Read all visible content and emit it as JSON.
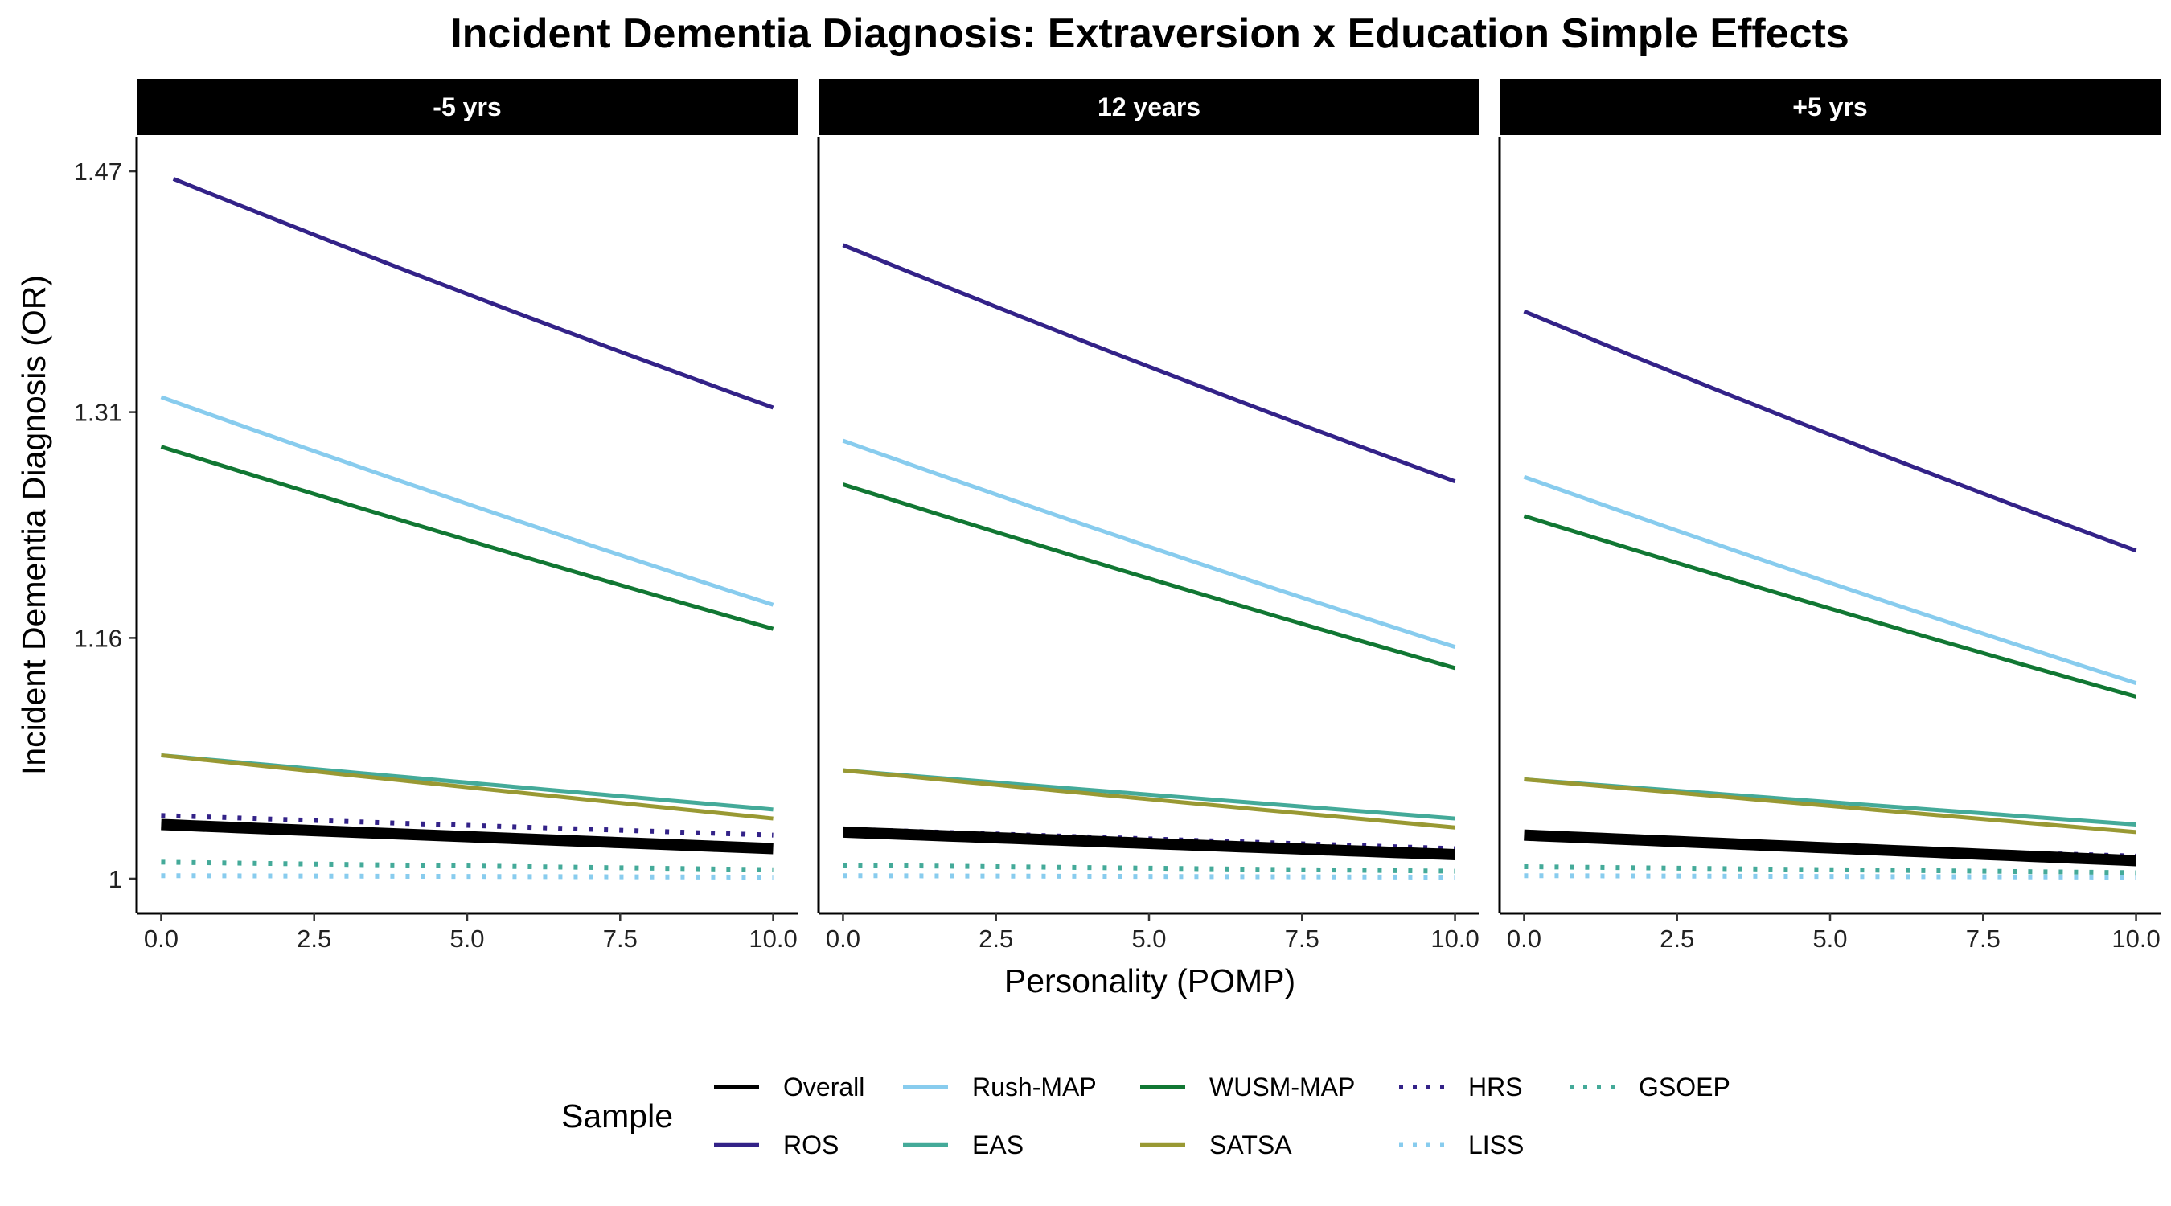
{
  "chart_data": {
    "type": "line",
    "title": "Incident Dementia Diagnosis: Extraversion x Education Simple Effects",
    "xlabel": "Personality (POMP)",
    "ylabel": "Incident Dementia Diagnosis (OR)",
    "xlim": [
      -0.4,
      10.4
    ],
    "ylim": [
      0.977,
      1.493
    ],
    "x_ticks": [
      "0.0",
      "2.5",
      "5.0",
      "7.5",
      "10.0"
    ],
    "y_ticks": [
      "1",
      "1.16",
      "1.31",
      "1.47"
    ],
    "grid": false,
    "legend_position": "bottom",
    "legend": {
      "title": "Sample",
      "entries": [
        {
          "name": "Overall",
          "color": "#000000",
          "style": "solid"
        },
        {
          "name": "ROS",
          "color": "#332288",
          "style": "solid"
        },
        {
          "name": "Rush-MAP",
          "color": "#88CCEE",
          "style": "solid"
        },
        {
          "name": "EAS",
          "color": "#44AA99",
          "style": "solid"
        },
        {
          "name": "WUSM-MAP",
          "color": "#117733",
          "style": "solid"
        },
        {
          "name": "SATSA",
          "color": "#999933",
          "style": "solid"
        },
        {
          "name": "HRS",
          "color": "#332288",
          "style": "dotted"
        },
        {
          "name": "LISS",
          "color": "#88CCEE",
          "style": "dotted"
        },
        {
          "name": "GSOEP",
          "color": "#44AA99",
          "style": "dotted"
        }
      ]
    },
    "panels": [
      {
        "label": "-5 yrs",
        "series": [
          {
            "name": "ROS",
            "x_start": 0.2,
            "values": [
              1.465,
              1.313
            ]
          },
          {
            "name": "Rush-MAP",
            "values": [
              1.32,
              1.182
            ]
          },
          {
            "name": "WUSM-MAP",
            "values": [
              1.287,
              1.166
            ]
          },
          {
            "name": "EAS",
            "values": [
              1.082,
              1.046
            ]
          },
          {
            "name": "SATSA",
            "values": [
              1.082,
              1.04
            ]
          },
          {
            "name": "HRS",
            "values": [
              1.042,
              1.029
            ]
          },
          {
            "name": "Overall",
            "values": [
              1.036,
              1.02
            ]
          },
          {
            "name": "GSOEP",
            "values": [
              1.011,
              1.006
            ]
          },
          {
            "name": "LISS",
            "values": [
              1.002,
              1.001
            ]
          }
        ]
      },
      {
        "label": "12 years",
        "series": [
          {
            "name": "ROS",
            "values": [
              1.421,
              1.264
            ]
          },
          {
            "name": "Rush-MAP",
            "values": [
              1.291,
              1.154
            ]
          },
          {
            "name": "WUSM-MAP",
            "values": [
              1.262,
              1.14
            ]
          },
          {
            "name": "EAS",
            "values": [
              1.072,
              1.04
            ]
          },
          {
            "name": "SATSA",
            "values": [
              1.072,
              1.034
            ]
          },
          {
            "name": "HRS",
            "values": [
              1.033,
              1.02
            ]
          },
          {
            "name": "Overall",
            "values": [
              1.031,
              1.016
            ]
          },
          {
            "name": "GSOEP",
            "values": [
              1.009,
              1.005
            ]
          },
          {
            "name": "LISS",
            "values": [
              1.002,
              1.001
            ]
          }
        ]
      },
      {
        "label": "+5 yrs",
        "series": [
          {
            "name": "ROS",
            "values": [
              1.377,
              1.218
            ]
          },
          {
            "name": "Rush-MAP",
            "values": [
              1.267,
              1.13
            ]
          },
          {
            "name": "WUSM-MAP",
            "values": [
              1.241,
              1.121
            ]
          },
          {
            "name": "EAS",
            "values": [
              1.066,
              1.036
            ]
          },
          {
            "name": "SATSA",
            "values": [
              1.066,
              1.031
            ]
          },
          {
            "name": "HRS",
            "values": [
              1.027,
              1.015
            ]
          },
          {
            "name": "Overall",
            "values": [
              1.029,
              1.012
            ]
          },
          {
            "name": "GSOEP",
            "values": [
              1.008,
              1.004
            ]
          },
          {
            "name": "LISS",
            "values": [
              1.002,
              1.001
            ]
          }
        ]
      }
    ]
  }
}
